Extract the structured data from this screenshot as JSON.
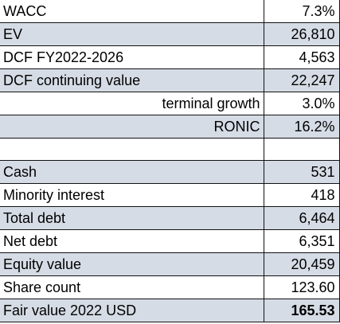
{
  "rows": [
    {
      "label": "WACC",
      "value": "7.3%"
    },
    {
      "label": "EV",
      "value": "26,810"
    },
    {
      "label": "DCF FY2022-2026",
      "value": "4,563"
    },
    {
      "label": "DCF continuing value",
      "value": "22,247"
    },
    {
      "label": "terminal growth",
      "value": "3.0%"
    },
    {
      "label": "RONIC",
      "value": "16.2%"
    },
    {
      "label": "",
      "value": ""
    },
    {
      "label": "Cash",
      "value": "531"
    },
    {
      "label": "Minority interest",
      "value": "418"
    },
    {
      "label": "Total debt",
      "value": "6,464"
    },
    {
      "label": "Net debt",
      "value": "6,351"
    },
    {
      "label": "Equity value",
      "value": "20,459"
    },
    {
      "label": "Share count",
      "value": "123.60"
    },
    {
      "label": "Fair value 2022 USD",
      "value": "165.53"
    }
  ],
  "colors": {
    "shade": "#d6dce5",
    "border": "#111111"
  }
}
